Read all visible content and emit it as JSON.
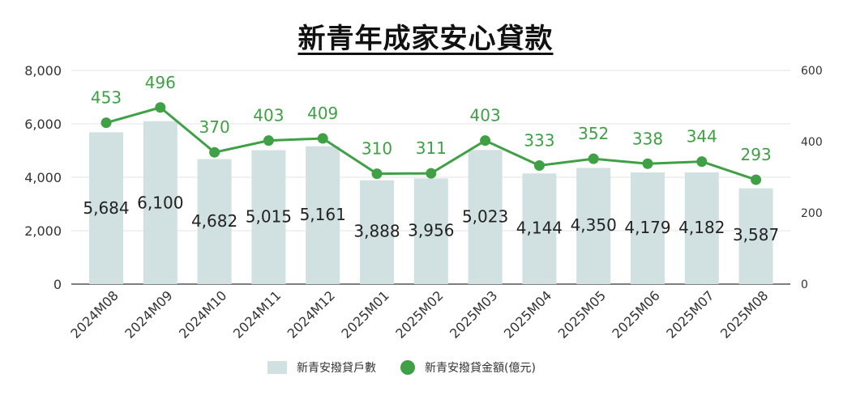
{
  "chart_data": {
    "type": "bar",
    "title": "新青年成家安心貸款",
    "categories": [
      "2024M08",
      "2024M09",
      "2024M10",
      "2024M11",
      "2024M12",
      "2025M01",
      "2025M02",
      "2025M03",
      "2025M04",
      "2025M05",
      "2025M06",
      "2025M07",
      "2025M08"
    ],
    "series": [
      {
        "name": "新青安撥貸戶數",
        "type": "bar",
        "axis": "left",
        "color": "#d1e0e0",
        "values": [
          5684,
          6100,
          4682,
          5015,
          5161,
          3888,
          3956,
          5023,
          4144,
          4350,
          4179,
          4182,
          3587
        ],
        "labels": [
          "5,684",
          "6,100",
          "4,682",
          "5,015",
          "5,161",
          "3,888",
          "3,956",
          "5,023",
          "4,144",
          "4,350",
          "4,179",
          "4,182",
          "3,587"
        ]
      },
      {
        "name": "新青安撥貸金額(億元)",
        "type": "line",
        "axis": "right",
        "color": "#3fa046",
        "values": [
          453,
          496,
          370,
          403,
          409,
          310,
          311,
          403,
          333,
          352,
          338,
          344,
          293
        ],
        "labels": [
          "453",
          "496",
          "370",
          "403",
          "409",
          "310",
          "311",
          "403",
          "333",
          "352",
          "338",
          "344",
          "293"
        ]
      }
    ],
    "y_left": {
      "lim": [
        0,
        8000
      ],
      "ticks": [
        0,
        2000,
        4000,
        6000,
        8000
      ],
      "tick_labels": [
        "0",
        "2,000",
        "4,000",
        "6,000",
        "8,000"
      ]
    },
    "y_right": {
      "lim": [
        0,
        600
      ],
      "ticks": [
        0,
        200,
        400,
        600
      ],
      "tick_labels": [
        "0",
        "200",
        "400",
        "600"
      ]
    },
    "grid": true,
    "legend": "bottom"
  }
}
